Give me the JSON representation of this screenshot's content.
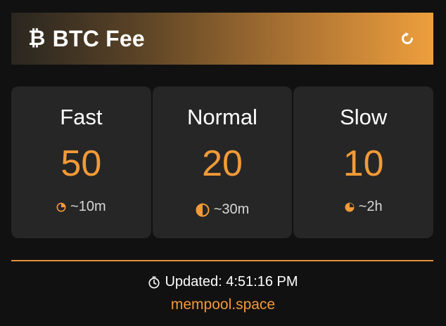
{
  "header": {
    "currency_symbol": "₿",
    "title": "BTC Fee",
    "refresh_icon": "refresh-icon"
  },
  "colors": {
    "accent": "#f39a37",
    "card_bg": "#262626",
    "page_bg": "#111111"
  },
  "fees": [
    {
      "label": "Fast",
      "value": "50",
      "time": "~10m",
      "icon": "clock-pie-quarter-icon"
    },
    {
      "label": "Normal",
      "value": "20",
      "time": "~30m",
      "icon": "clock-pie-half-icon"
    },
    {
      "label": "Slow",
      "value": "10",
      "time": "~2h",
      "icon": "clock-pie-three-quarter-icon"
    }
  ],
  "footer": {
    "updated": "Updated: 4:51:16 PM",
    "source": "mempool.space",
    "clock_icon": "stopwatch-icon"
  }
}
